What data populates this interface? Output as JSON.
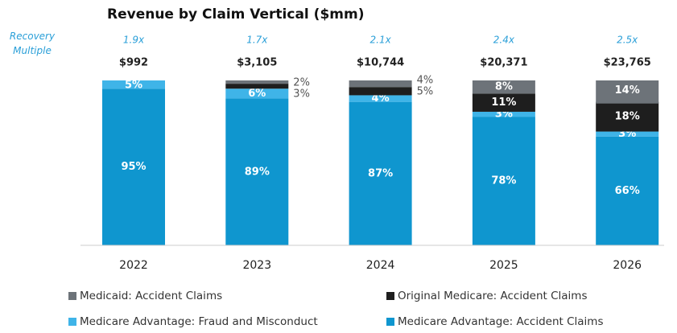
{
  "chart_data": {
    "type": "stacked_bar",
    "title": "Revenue by Claim Vertical ($mm)",
    "annotation": "Recovery Multiple",
    "categories": [
      "2022",
      "2023",
      "2024",
      "2025",
      "2026"
    ],
    "ylim": [
      0,
      100
    ],
    "multiples": {
      "values": [
        1.9,
        1.7,
        2.1,
        2.4,
        2.5
      ],
      "value_labels": [
        "1.9x",
        "1.7x",
        "2.1x",
        "2.4x",
        "2.5x"
      ]
    },
    "totals": {
      "values": [
        992,
        3105,
        10744,
        20371,
        23765
      ],
      "value_labels": [
        "$992",
        "$3,105",
        "$10,744",
        "$20,371",
        "$23,765"
      ]
    },
    "series": [
      {
        "name": "Medicare Advantage: Accident Claims",
        "color": "#0f96cf",
        "values": [
          95,
          89,
          87,
          78,
          66
        ],
        "value_labels": [
          "95%",
          "89%",
          "87%",
          "78%",
          "66%"
        ]
      },
      {
        "name": "Medicare Advantage: Fraud and Misconduct",
        "color": "#3fb4e8",
        "values": [
          5,
          6,
          4,
          3,
          3
        ],
        "value_labels": [
          "5%",
          "6%",
          "4%",
          "3%",
          "3%"
        ]
      },
      {
        "name": "Original Medicare: Accident Claims",
        "color": "#1e1e1e",
        "values": [
          null,
          3,
          5,
          11,
          18
        ],
        "value_labels": [
          null,
          "3%",
          "5%",
          "11%",
          "18%"
        ]
      },
      {
        "name": "Medicaid: Accident Claims",
        "color": "#6d7379",
        "values": [
          null,
          2,
          4,
          8,
          14
        ],
        "value_labels": [
          null,
          "2%",
          "4%",
          "8%",
          "14%"
        ]
      }
    ]
  }
}
